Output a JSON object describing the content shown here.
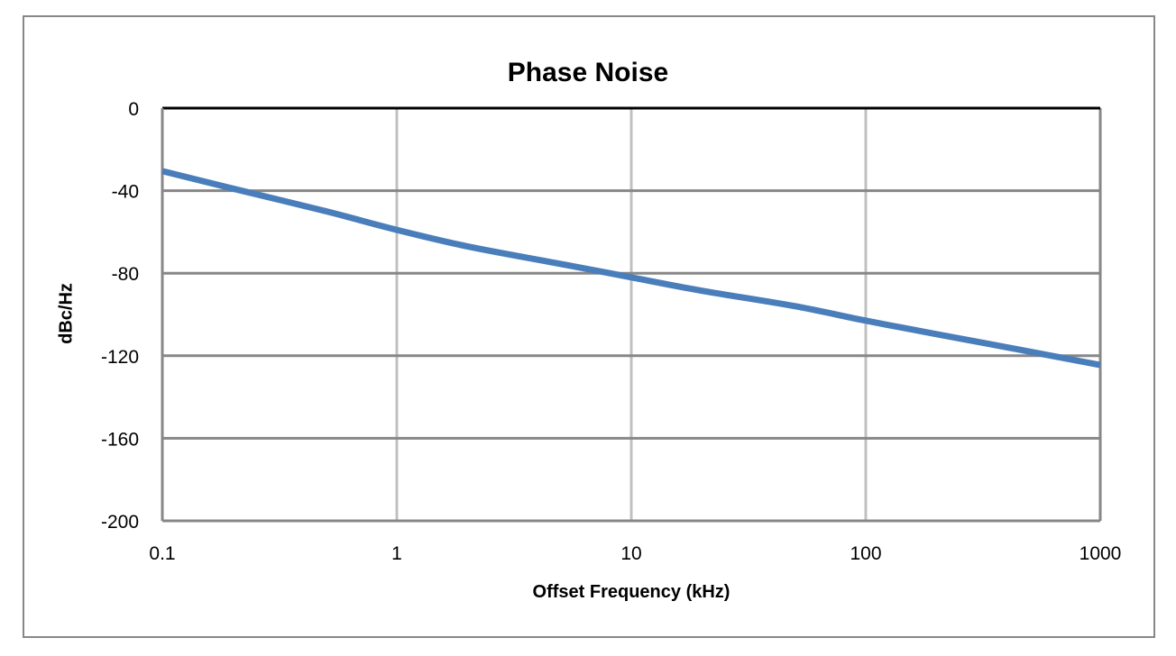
{
  "chart_data": {
    "type": "line",
    "title": "Phase Noise",
    "xlabel": "Offset Frequency (kHz)",
    "ylabel": "dBc/Hz",
    "xscale": "log",
    "xlim": [
      0.1,
      1000
    ],
    "ylim": [
      -200,
      0
    ],
    "xticks": [
      "0.1",
      "1",
      "10",
      "100",
      "1000"
    ],
    "yticks": [
      "0",
      "-40",
      "-80",
      "-120",
      "-160",
      "-200"
    ],
    "grid": true,
    "legend": "none",
    "series": [
      {
        "name": "Phase Noise",
        "color": "#4a7ebb",
        "x": [
          0.1,
          0.2,
          0.5,
          1,
          2,
          5,
          10,
          20,
          50,
          100,
          200,
          500,
          1000
        ],
        "y": [
          -30.5,
          -39,
          -50,
          -59,
          -67,
          -75.5,
          -82,
          -88.5,
          -96,
          -103,
          -109.5,
          -118,
          -124.5
        ]
      }
    ]
  },
  "colors": {
    "line": "#4a7ebb",
    "frame": "#878787",
    "grid_h": "#878787",
    "grid_v": "#c0c0c0"
  }
}
